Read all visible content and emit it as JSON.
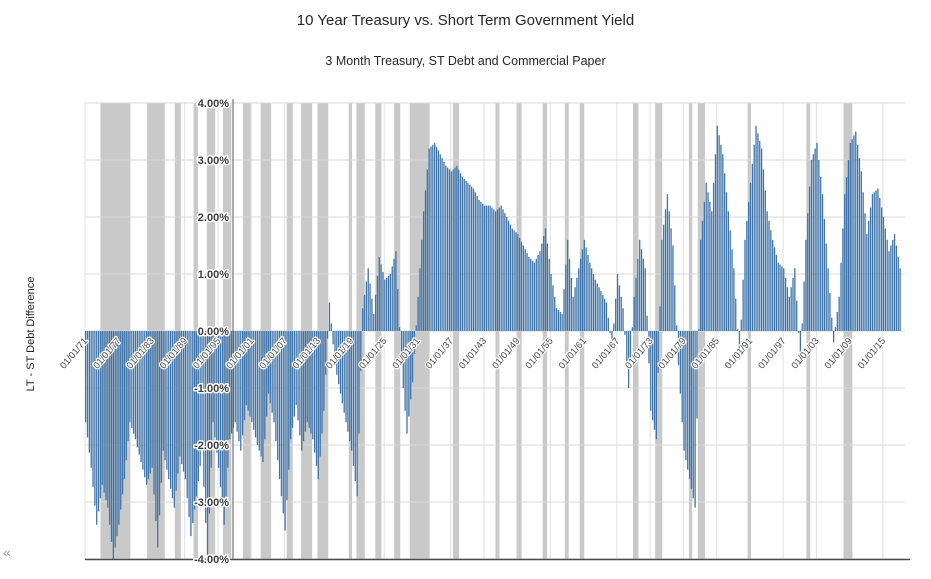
{
  "header": {
    "title": "10 Year Treasury vs. Short Term Government Yield",
    "subtitle": "3 Month Treasury, ST Debt and Commercial Paper"
  },
  "y_axis_label": "LT - ST Debt Difference",
  "corner_glyph": "«",
  "chart_data": {
    "type": "bar",
    "title": "10 Year Treasury vs. Short Term Government Yield",
    "subtitle": "3 Month Treasury, ST Debt and Commercial Paper",
    "xlabel": "",
    "ylabel": "LT - ST Debt Difference",
    "ylim": [
      -4,
      4
    ],
    "x_range": [
      1871,
      2019
    ],
    "grid": true,
    "legend": "none",
    "bar_color": "#3f74aa",
    "recession_band_color": "#c9c9c9",
    "grid_color": "#d9d9d9",
    "axis_line_color": "#5a5a5a",
    "y_tick_values": [
      4,
      3,
      2,
      1,
      0,
      -1,
      -2,
      -3,
      -4
    ],
    "y_tick_labels": [
      "4.00%",
      "3.00%",
      "2.00%",
      "1.00%",
      "0.00%",
      "-1.00%",
      "-2.00%",
      "-3.00%",
      "-4.00%"
    ],
    "x_tick_years": [
      1871,
      1877,
      1883,
      1889,
      1895,
      1901,
      1907,
      1913,
      1919,
      1925,
      1931,
      1937,
      1943,
      1949,
      1955,
      1961,
      1967,
      1973,
      1979,
      1985,
      1991,
      1997,
      2003,
      2009,
      2015
    ],
    "x_tick_labels": [
      "01/01/71",
      "01/01/77",
      "01/01/83",
      "01/01/89",
      "01/01/95",
      "01/01/01",
      "01/01/07",
      "01/01/13",
      "01/01/19",
      "01/01/25",
      "01/01/31",
      "01/01/37",
      "01/01/43",
      "01/01/49",
      "01/01/55",
      "01/01/61",
      "01/01/67",
      "01/01/73",
      "01/01/79",
      "01/01/85",
      "01/01/91",
      "01/01/97",
      "01/01/03",
      "01/01/09",
      "01/01/15"
    ],
    "series": [
      {
        "name": "LT - ST Debt Difference (annual approx, %)",
        "start_year": 1871,
        "end_year": 2018,
        "values": [
          -1.6,
          -2.4,
          -3.4,
          -2.7,
          -3.1,
          -4.0,
          -3.4,
          -2.6,
          -1.6,
          -1.9,
          -2.3,
          -2.7,
          -2.4,
          -3.8,
          -2.1,
          -2.6,
          -3.1,
          -2.2,
          -2.6,
          -3.6,
          -2.9,
          -2.1,
          -4.0,
          -1.6,
          -2.4,
          -3.4,
          -1.9,
          -1.6,
          -2.1,
          -1.3,
          -1.6,
          -2.0,
          -2.3,
          -1.1,
          -1.6,
          -2.6,
          -3.5,
          -1.9,
          -1.3,
          -2.1,
          -1.6,
          -1.9,
          -2.6,
          -1.4,
          0.5,
          -0.6,
          -1.1,
          -1.6,
          -2.1,
          -2.9,
          0.4,
          1.1,
          0.3,
          1.3,
          0.9,
          1.0,
          1.4,
          -0.6,
          -1.8,
          -0.9,
          0.6,
          2.1,
          3.2,
          3.3,
          3.1,
          2.9,
          2.8,
          2.9,
          2.7,
          2.6,
          2.5,
          2.3,
          2.2,
          2.2,
          2.1,
          2.2,
          2.0,
          1.8,
          1.7,
          1.5,
          1.3,
          1.2,
          1.4,
          1.8,
          1.0,
          0.4,
          0.3,
          1.6,
          0.6,
          1.1,
          1.6,
          1.2,
          0.9,
          0.7,
          0.5,
          -0.3,
          1.0,
          0.4,
          -1.0,
          0.6,
          1.6,
          1.1,
          -1.4,
          -1.9,
          1.6,
          2.4,
          1.5,
          -0.6,
          -2.1,
          -2.6,
          -3.1,
          1.6,
          2.6,
          2.1,
          3.6,
          3.1,
          2.1,
          1.1,
          -0.5,
          1.6,
          2.6,
          3.6,
          3.2,
          2.1,
          1.6,
          1.2,
          1.1,
          0.6,
          1.1,
          -0.6,
          1.6,
          3.0,
          3.3,
          2.4,
          1.1,
          -0.2,
          0.6,
          2.4,
          3.3,
          3.5,
          2.8,
          1.7,
          2.4,
          2.5,
          2.0,
          1.4,
          1.7,
          1.1
        ]
      }
    ],
    "recession_bands_years": [
      [
        1873.8,
        1879.2
      ],
      [
        1882.2,
        1885.4
      ],
      [
        1887.2,
        1888.3
      ],
      [
        1890.6,
        1891.4
      ],
      [
        1893.0,
        1894.5
      ],
      [
        1895.9,
        1897.4
      ],
      [
        1899.5,
        1900.9
      ],
      [
        1902.7,
        1904.6
      ],
      [
        1907.4,
        1908.5
      ],
      [
        1910.0,
        1912.0
      ],
      [
        1913.0,
        1914.9
      ],
      [
        1918.6,
        1919.2
      ],
      [
        1920.0,
        1921.5
      ],
      [
        1923.4,
        1924.5
      ],
      [
        1926.8,
        1927.9
      ],
      [
        1929.6,
        1933.2
      ],
      [
        1937.4,
        1938.5
      ],
      [
        1945.1,
        1945.8
      ],
      [
        1948.9,
        1949.8
      ],
      [
        1953.6,
        1954.4
      ],
      [
        1957.6,
        1958.3
      ],
      [
        1960.3,
        1961.1
      ],
      [
        1969.9,
        1970.9
      ],
      [
        1973.9,
        1975.2
      ],
      [
        1980.0,
        1980.6
      ],
      [
        1981.6,
        1982.9
      ],
      [
        1990.6,
        1991.2
      ],
      [
        2001.2,
        2001.9
      ],
      [
        2007.9,
        2009.5
      ]
    ]
  }
}
